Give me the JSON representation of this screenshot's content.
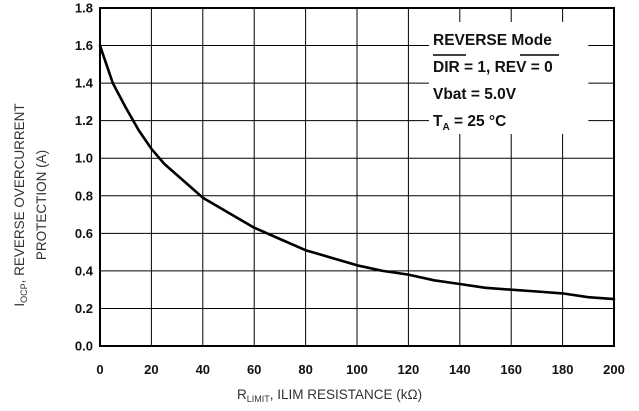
{
  "chart_data": {
    "type": "line",
    "xlabel": {
      "main": "R",
      "sub": "LIMIT",
      "rest": ", ILIM RESISTANCE (kΩ)"
    },
    "ylabel": {
      "main": "I",
      "sub": "OCP",
      "rest": ", REVERSE OVERCURRENT",
      "line2": "PROTECTION (A)"
    },
    "xlim": [
      0,
      200
    ],
    "ylim": [
      0,
      1.8
    ],
    "x_ticks": [
      "0",
      "20",
      "40",
      "60",
      "80",
      "100",
      "120",
      "140",
      "160",
      "180",
      "200"
    ],
    "y_ticks": [
      "0.0",
      "0.2",
      "0.4",
      "0.6",
      "0.8",
      "1.0",
      "1.2",
      "1.4",
      "1.6",
      "1.8"
    ],
    "grid": true,
    "series": [
      {
        "x": [
          0,
          2,
          5,
          10,
          15,
          20,
          25,
          30,
          35,
          40,
          45,
          50,
          60,
          70,
          80,
          90,
          100,
          110,
          120,
          130,
          140,
          150,
          160,
          170,
          180,
          190,
          200
        ],
        "y": [
          1.6,
          1.52,
          1.4,
          1.27,
          1.15,
          1.05,
          0.97,
          0.91,
          0.85,
          0.79,
          0.75,
          0.71,
          0.63,
          0.57,
          0.51,
          0.47,
          0.43,
          0.4,
          0.38,
          0.35,
          0.33,
          0.31,
          0.3,
          0.29,
          0.28,
          0.26,
          0.25
        ]
      }
    ],
    "annotation": {
      "line1": "REVERSE Mode",
      "line2": {
        "dir": "DIR",
        "dir_val": " = 1, ",
        "rev": "REV",
        "rev_val": " = 0"
      },
      "line3": "Vbat = 5.0V",
      "line4": {
        "main": "T",
        "sub": "A",
        "rest": " = 25 °C"
      }
    },
    "colors": {
      "line": "#000000",
      "grid": "#000000",
      "background": "#ffffff"
    }
  }
}
